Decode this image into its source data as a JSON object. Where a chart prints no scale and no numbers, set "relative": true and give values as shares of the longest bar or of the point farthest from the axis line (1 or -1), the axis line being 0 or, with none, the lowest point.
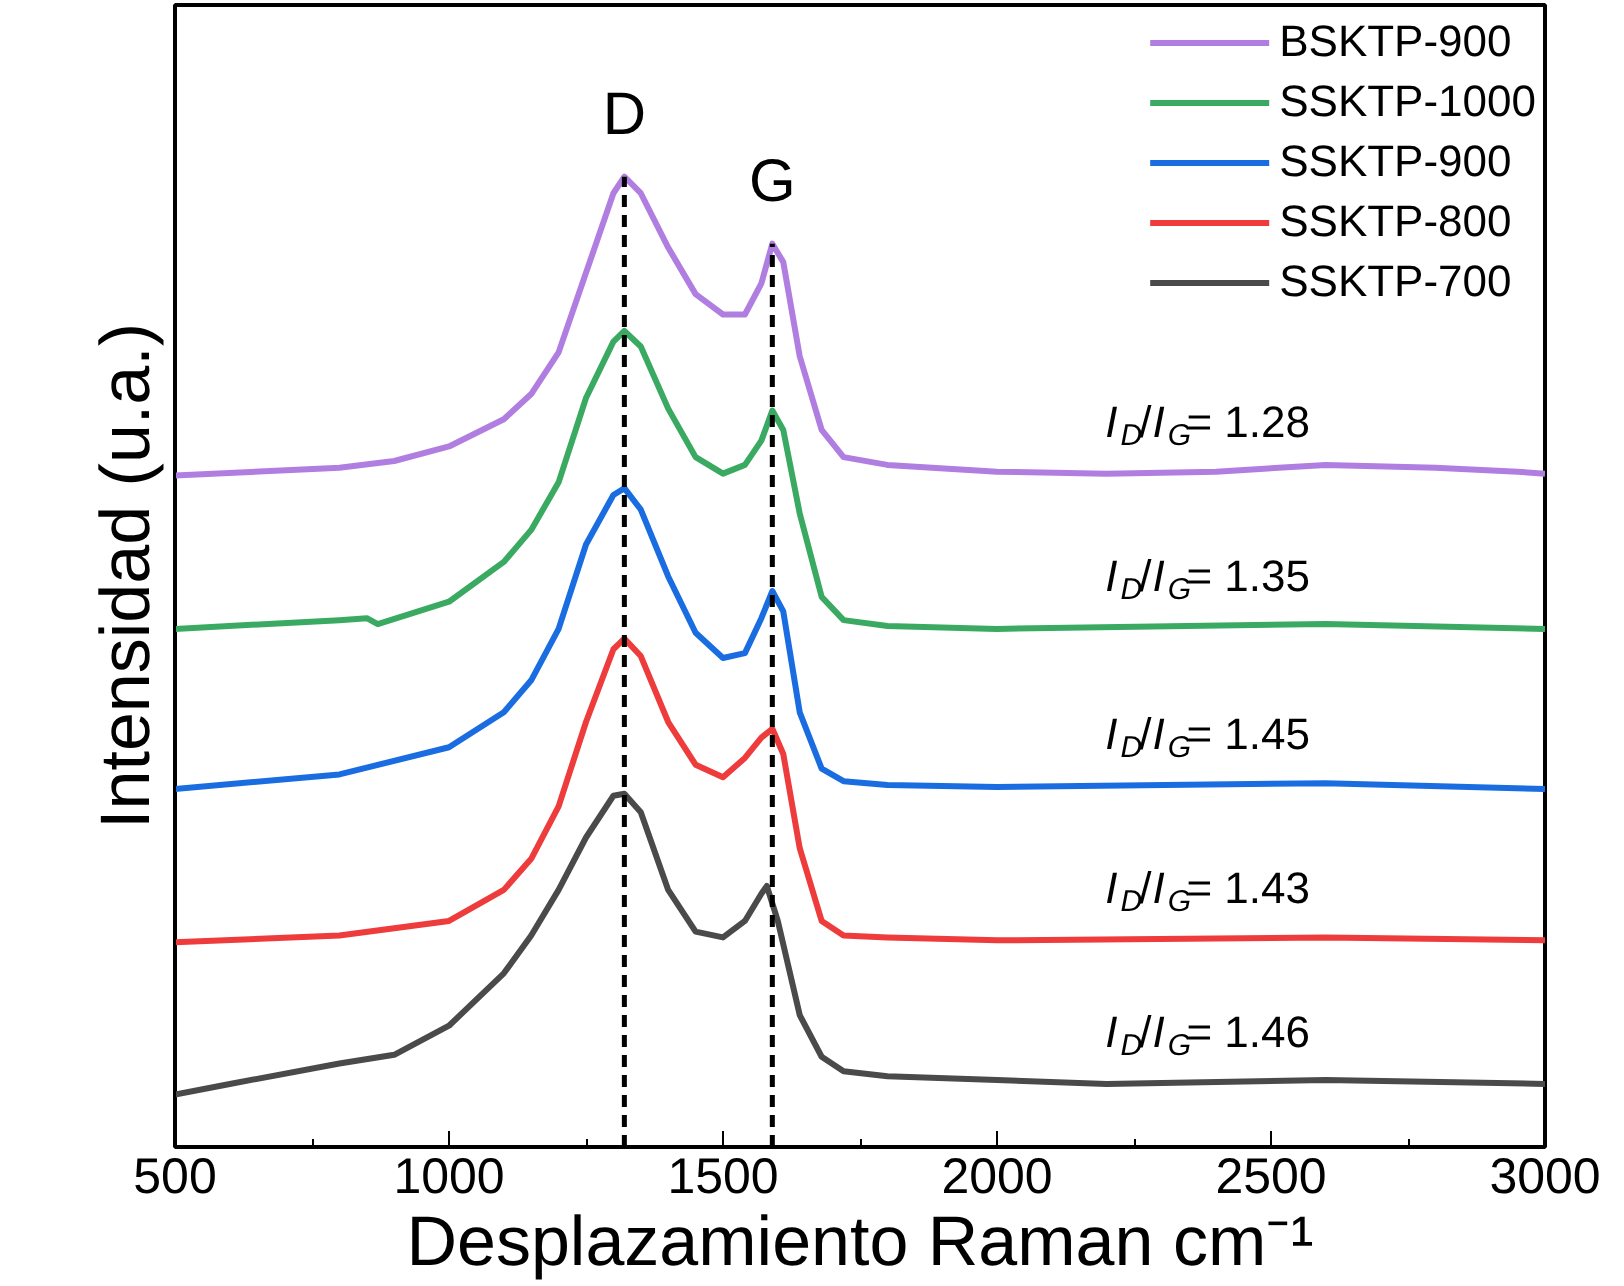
{
  "chart_data": {
    "type": "line",
    "relative": true,
    "xlabel": "Desplazamiento Raman cm⁻¹",
    "ylabel": "Intensidad (u.a.)",
    "xlim": [
      500,
      3000
    ],
    "xticks": [
      500,
      1000,
      1500,
      2000,
      2500,
      3000
    ],
    "legend": "top right",
    "grid": false,
    "line_style": "solid",
    "tick_labels": "x",
    "series": [
      {
        "name": "BSKTP-900",
        "color": "#b07ee0",
        "x": [
          500,
          800,
          900,
          1000,
          1100,
          1150,
          1200,
          1250,
          1300,
          1320,
          1350,
          1400,
          1450,
          1500,
          1540,
          1570,
          1590,
          1610,
          1640,
          1680,
          1720,
          1800,
          2000,
          2200,
          2400,
          2600,
          2800,
          2950,
          3000
        ],
        "values": [
          0.692,
          0.7,
          0.707,
          0.722,
          0.75,
          0.776,
          0.819,
          0.901,
          0.983,
          1.0,
          0.983,
          0.927,
          0.879,
          0.858,
          0.858,
          0.89,
          0.931,
          0.912,
          0.815,
          0.739,
          0.711,
          0.703,
          0.696,
          0.694,
          0.696,
          0.703,
          0.7,
          0.696,
          0.694
        ]
      },
      {
        "name": "SSKTP-1000",
        "color": "#3aaa62",
        "x": [
          500,
          800,
          850,
          870,
          1000,
          1100,
          1150,
          1200,
          1250,
          1300,
          1320,
          1350,
          1400,
          1450,
          1500,
          1540,
          1570,
          1590,
          1610,
          1640,
          1680,
          1720,
          1800,
          2000,
          2600,
          3000
        ],
        "values": [
          0.534,
          0.543,
          0.545,
          0.539,
          0.562,
          0.603,
          0.636,
          0.685,
          0.772,
          0.83,
          0.841,
          0.825,
          0.761,
          0.711,
          0.694,
          0.703,
          0.728,
          0.759,
          0.739,
          0.653,
          0.567,
          0.543,
          0.537,
          0.534,
          0.539,
          0.534
        ]
      },
      {
        "name": "SSKTP-900",
        "color": "#1a6de0",
        "x": [
          500,
          800,
          1000,
          1100,
          1150,
          1200,
          1250,
          1300,
          1320,
          1350,
          1400,
          1450,
          1500,
          1540,
          1570,
          1590,
          1610,
          1640,
          1680,
          1720,
          1800,
          2000,
          2600,
          3000
        ],
        "values": [
          0.369,
          0.384,
          0.412,
          0.448,
          0.481,
          0.534,
          0.621,
          0.672,
          0.679,
          0.657,
          0.588,
          0.53,
          0.504,
          0.509,
          0.545,
          0.573,
          0.552,
          0.448,
          0.39,
          0.377,
          0.373,
          0.371,
          0.375,
          0.369
        ]
      },
      {
        "name": "SSKTP-800",
        "color": "#ee3b3b",
        "x": [
          500,
          800,
          1000,
          1100,
          1150,
          1200,
          1250,
          1300,
          1320,
          1350,
          1400,
          1450,
          1500,
          1540,
          1570,
          1590,
          1610,
          1640,
          1680,
          1720,
          1800,
          2000,
          2600,
          3000
        ],
        "values": [
          0.211,
          0.218,
          0.233,
          0.265,
          0.297,
          0.351,
          0.438,
          0.513,
          0.524,
          0.506,
          0.438,
          0.394,
          0.381,
          0.401,
          0.422,
          0.431,
          0.405,
          0.308,
          0.233,
          0.218,
          0.216,
          0.213,
          0.216,
          0.213
        ]
      },
      {
        "name": "SSKTP-700",
        "color": "#4a4a4a",
        "x": [
          500,
          600,
          800,
          900,
          1000,
          1100,
          1150,
          1200,
          1250,
          1300,
          1320,
          1350,
          1400,
          1450,
          1500,
          1540,
          1570,
          1580,
          1600,
          1640,
          1680,
          1720,
          1800,
          2000,
          2200,
          2600,
          3000
        ],
        "values": [
          0.054,
          0.065,
          0.086,
          0.095,
          0.125,
          0.179,
          0.218,
          0.265,
          0.319,
          0.362,
          0.364,
          0.345,
          0.265,
          0.222,
          0.216,
          0.233,
          0.261,
          0.269,
          0.233,
          0.136,
          0.093,
          0.078,
          0.073,
          0.069,
          0.065,
          0.069,
          0.065
        ]
      }
    ],
    "ref_lines": [
      {
        "axis": "x",
        "value": 1320,
        "label": "D",
        "color": "#000000",
        "line_style": "dashed"
      },
      {
        "axis": "x",
        "value": 1590,
        "label": "G",
        "color": "#000000",
        "line_style": "dashed"
      }
    ],
    "annotations": [
      "I$_{D}$/I$_{G}$= 1.28",
      "I$_{D}$/I$_{G}$= 1.35",
      "I$_{D}$/I$_{G}$= 1.45",
      "I$_{D}$/I$_{G}$= 1.43",
      "I$_{D}$/I$_{G}$= 1.46"
    ]
  }
}
